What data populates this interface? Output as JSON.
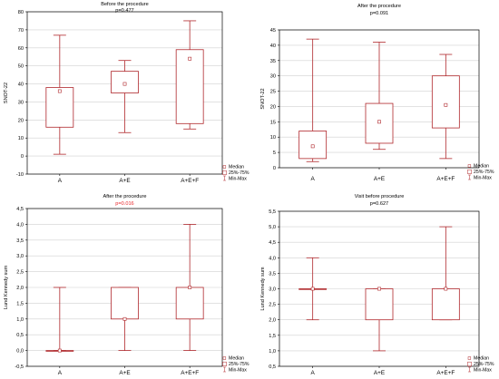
{
  "chart_data": [
    {
      "type": "box",
      "title": "Before the procedure",
      "subtitle": "p=0.477",
      "subtitle_color": "#000000",
      "ylabel": "SNOT-22",
      "xlabel": "",
      "categories": [
        "A",
        "A+E",
        "A+E+F"
      ],
      "ylim": [
        -10,
        80
      ],
      "yticks": [
        -10,
        0,
        10,
        20,
        30,
        40,
        50,
        60,
        70,
        80
      ],
      "tick_labels": [
        "-10",
        "0",
        "10",
        "20",
        "30",
        "40",
        "50",
        "60",
        "70",
        "80"
      ],
      "grid": true,
      "boxes": [
        {
          "min": 1,
          "q1": 16,
          "median": 36,
          "q3": 38,
          "max": 67
        },
        {
          "min": 13,
          "q1": 35,
          "median": 40,
          "q3": 47,
          "max": 53
        },
        {
          "min": 15,
          "q1": 18,
          "median": 54,
          "q3": 59,
          "max": 75
        }
      ],
      "legend": {
        "position": "right-bottom",
        "entries": [
          "Median",
          "25%-75%",
          "Min-Max"
        ]
      }
    },
    {
      "type": "box",
      "title": "After the procedure",
      "subtitle": "p=0.091",
      "subtitle_color": "#000000",
      "ylabel": "SNOT-22",
      "xlabel": "",
      "categories": [
        "A",
        "A+E",
        "A+E+F"
      ],
      "ylim": [
        0,
        45
      ],
      "yticks": [
        0,
        5,
        10,
        15,
        20,
        25,
        30,
        35,
        40,
        45
      ],
      "tick_labels": [
        "0",
        "5",
        "10",
        "15",
        "20",
        "25",
        "30",
        "35",
        "40",
        "45"
      ],
      "grid": true,
      "boxes": [
        {
          "min": 2,
          "q1": 3,
          "median": 7,
          "q3": 12,
          "max": 42
        },
        {
          "min": 6,
          "q1": 8,
          "median": 15,
          "q3": 21,
          "max": 41
        },
        {
          "min": 3,
          "q1": 13,
          "median": 20.5,
          "q3": 30,
          "max": 37
        }
      ],
      "legend": {
        "position": "right-bottom",
        "entries": [
          "Median",
          "25%-75%",
          "Min-Max"
        ]
      }
    },
    {
      "type": "box",
      "title": "After the procedure",
      "subtitle": "p=0.016",
      "subtitle_color": "#e8262a",
      "ylabel": "Lund Kennedy sum",
      "xlabel": "",
      "categories": [
        "A",
        "A+E",
        "A+E+F"
      ],
      "ylim": [
        -0.5,
        4.5
      ],
      "yticks": [
        -0.5,
        0.0,
        0.5,
        1.0,
        1.5,
        2.0,
        2.5,
        3.0,
        3.5,
        4.0,
        4.5
      ],
      "tick_labels": [
        "-0,5",
        "0,0",
        "0,5",
        "1,0",
        "1,5",
        "2,0",
        "2,5",
        "3,0",
        "3,5",
        "4,0",
        "4,5"
      ],
      "grid": true,
      "boxes": [
        {
          "min": 0,
          "q1": 0,
          "median": 0,
          "q3": 0,
          "max": 2
        },
        {
          "min": 0,
          "q1": 1,
          "median": 1,
          "q3": 2,
          "max": 2
        },
        {
          "min": 0,
          "q1": 1,
          "median": 2,
          "q3": 2,
          "max": 4
        }
      ],
      "legend": {
        "position": "right-bottom",
        "entries": [
          "Median",
          "25%-75%",
          "Min-Max"
        ]
      }
    },
    {
      "type": "box",
      "title": "Visit before procedure",
      "subtitle": "p=0.627",
      "subtitle_color": "#000000",
      "ylabel": "Lund Kennedy sum",
      "xlabel": "",
      "categories": [
        "A",
        "A+E",
        "A+E+F"
      ],
      "ylim": [
        0.5,
        5.5
      ],
      "yticks": [
        0.5,
        1.0,
        1.5,
        2.0,
        2.5,
        3.0,
        3.5,
        4.0,
        4.5,
        5.0,
        5.5
      ],
      "tick_labels": [
        "0,5",
        "1,0",
        "1,5",
        "2,0",
        "2,5",
        "3,0",
        "3,5",
        "4,0",
        "4,5",
        "5,0",
        "5,5"
      ],
      "grid": true,
      "boxes": [
        {
          "min": 2,
          "q1": 3,
          "median": 3,
          "q3": 3,
          "max": 4
        },
        {
          "min": 1,
          "q1": 2,
          "median": 3,
          "q3": 3,
          "max": 3
        },
        {
          "min": 2,
          "q1": 2,
          "median": 3,
          "q3": 3,
          "max": 5
        }
      ],
      "legend": {
        "position": "right-bottom",
        "entries": [
          "Median",
          "25%-75%",
          "Min-Max"
        ]
      }
    }
  ],
  "colors": {
    "box": "#b0282c",
    "text": "#000000",
    "grid": "#d0d0d0",
    "axis": "#000000"
  }
}
